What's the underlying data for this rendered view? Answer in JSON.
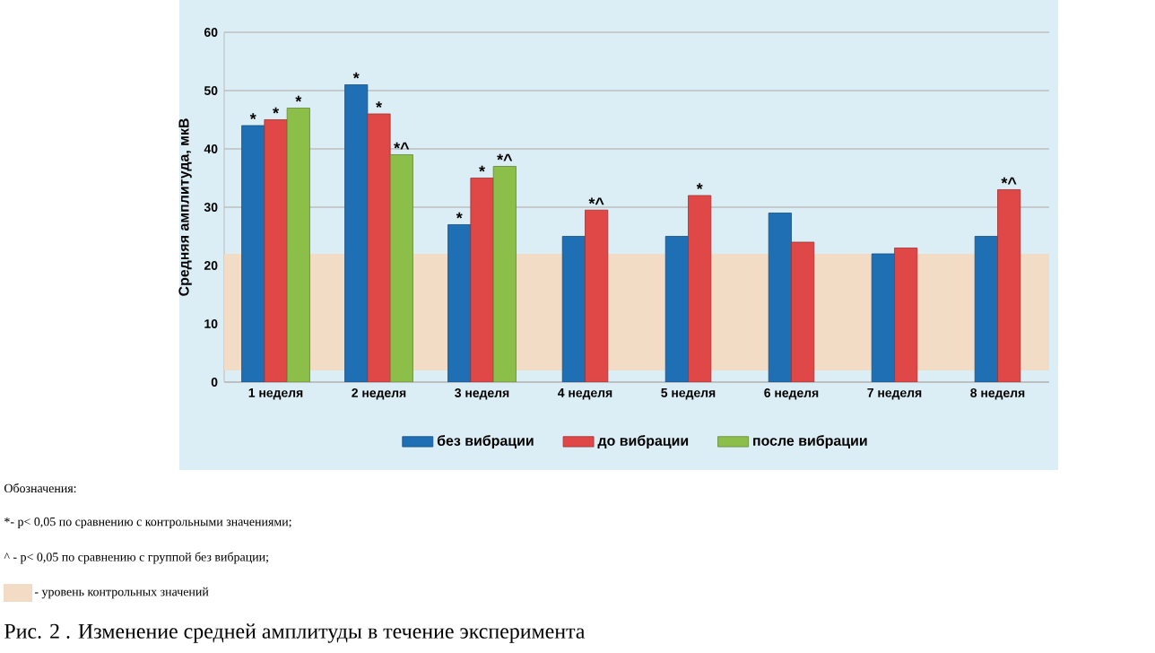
{
  "chart_data": {
    "type": "bar",
    "title": "Рис. 2 . Изменение средней амплитуды в течение эксперимента",
    "ylabel": "Средняя амплитуда, мкВ",
    "categories": [
      "1 неделя",
      "2 неделя",
      "3 неделя",
      "4 неделя",
      "5 неделя",
      "6 неделя",
      "7 неделя",
      "8 неделя"
    ],
    "series": [
      {
        "name": "без вибрации",
        "color": "#1f6fb5",
        "values": [
          44,
          51,
          27,
          25,
          25,
          29,
          22,
          25
        ]
      },
      {
        "name": "до вибрации",
        "color": "#e04848",
        "values": [
          45,
          46,
          35,
          29.5,
          32,
          24,
          23,
          33
        ]
      },
      {
        "name": "после вибрации",
        "color": "#8cbf4a",
        "values": [
          47,
          39,
          37,
          null,
          null,
          null,
          null,
          null
        ]
      }
    ],
    "ylim": [
      0,
      60
    ],
    "yticks": [
      0,
      10,
      20,
      30,
      40,
      50,
      60
    ],
    "grid": "y",
    "legend": "bottom",
    "bands": [
      {
        "axis": "y",
        "from": 2,
        "to": 22,
        "label": "- уровень контрольных значений",
        "color": "#f2dcc6"
      }
    ],
    "annotations": [
      "Обозначения:",
      "*- p< 0,05 по сравнению с контрольными значениями;",
      "^ - p< 0,05 по сравнению с группой без вибрации;",
      {
        "text": "*",
        "x": "1 неделя",
        "y": 44
      },
      {
        "text": "*",
        "x": "1 неделя",
        "y": 45
      },
      {
        "text": "*",
        "y": 47
      },
      {
        "text": "*",
        "y": 51
      },
      {
        "text": "*",
        "x": "2 неделя",
        "y": 46
      },
      {
        "text": "*^",
        "y": 39
      },
      {
        "text": "*",
        "y": 27
      },
      {
        "text": "*",
        "x": "3 неделя",
        "y": 35
      },
      {
        "text": "*^",
        "y": 37
      },
      {
        "text": "*^",
        "x": "4 неделя",
        "y": 29.5
      },
      {
        "text": "*",
        "x": "5 неделя",
        "y": 32
      },
      {
        "text": "*^",
        "x": "8 неделя",
        "y": 33
      }
    ]
  }
}
